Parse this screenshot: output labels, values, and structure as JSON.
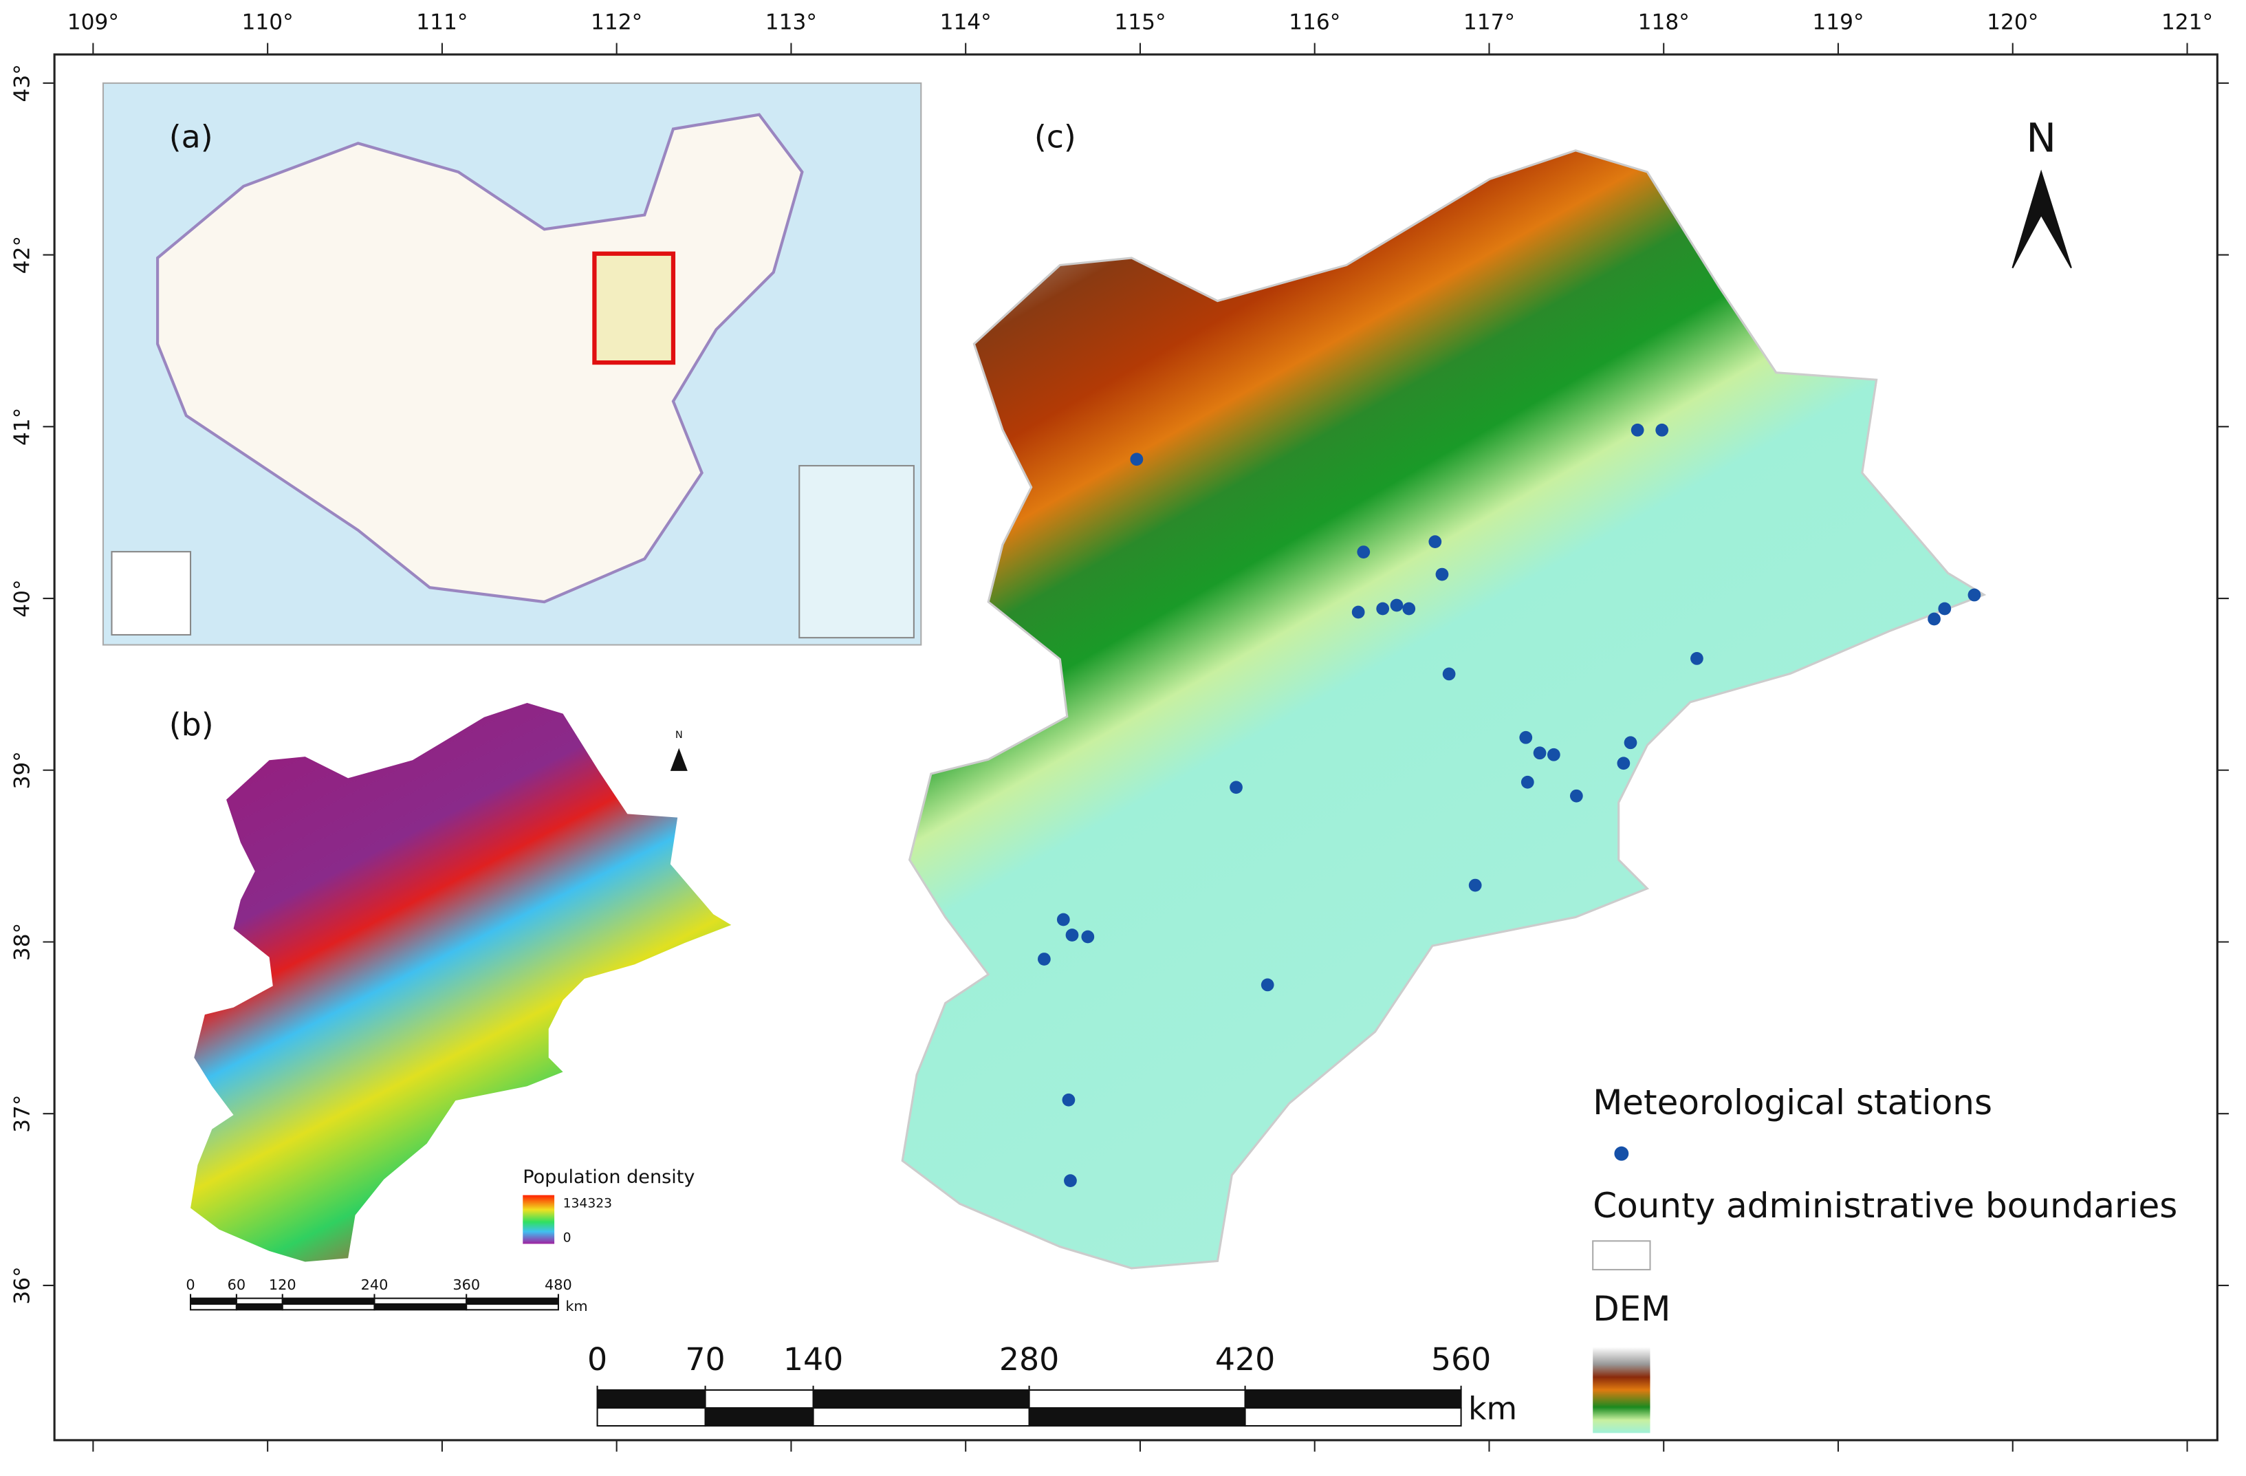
{
  "lon_ticks": [
    {
      "value": 109,
      "label": "109°"
    },
    {
      "value": 110,
      "label": "110°"
    },
    {
      "value": 111,
      "label": "111°"
    },
    {
      "value": 112,
      "label": "112°"
    },
    {
      "value": 113,
      "label": "113°"
    },
    {
      "value": 114,
      "label": "114°"
    },
    {
      "value": 115,
      "label": "115°"
    },
    {
      "value": 116,
      "label": "116°"
    },
    {
      "value": 117,
      "label": "117°"
    },
    {
      "value": 118,
      "label": "118°"
    },
    {
      "value": 119,
      "label": "119°"
    },
    {
      "value": 120,
      "label": "120°"
    },
    {
      "value": 121,
      "label": "121°"
    }
  ],
  "lat_ticks": [
    {
      "value": 36,
      "label": "36°"
    },
    {
      "value": 37,
      "label": "37°"
    },
    {
      "value": 38,
      "label": "38°"
    },
    {
      "value": 39,
      "label": "39°"
    },
    {
      "value": 40,
      "label": "40°"
    },
    {
      "value": 41,
      "label": "41°"
    },
    {
      "value": 42,
      "label": "42°"
    },
    {
      "value": 43,
      "label": "43°"
    }
  ],
  "panels": {
    "a": "(a)",
    "b": "(b)",
    "c": "(c)"
  },
  "north_main": "N",
  "north_b": "N",
  "legend": {
    "stations": "Meteorological stations",
    "boundaries": "County administrative boundaries",
    "dem": "DEM"
  },
  "scale_main": {
    "ticks": [
      0,
      70,
      140,
      280,
      420,
      560
    ],
    "unit": "km"
  },
  "scale_b": {
    "ticks": [
      0,
      60,
      120,
      240,
      360,
      480
    ],
    "unit": "km"
  },
  "population": {
    "title": "Population density",
    "max": 134323,
    "min": 0
  },
  "stations": {
    "lon": [
      114.98,
      117.85,
      117.99,
      116.28,
      116.69,
      116.73,
      116.25,
      116.39,
      116.47,
      116.54,
      118.19,
      116.77,
      119.55,
      119.61,
      119.78,
      117.21,
      117.29,
      117.37,
      117.22,
      117.81,
      117.77,
      117.5,
      115.55,
      116.92,
      114.56,
      114.61,
      114.7,
      114.45,
      115.73,
      114.59,
      114.6
    ],
    "lat": [
      40.81,
      40.98,
      40.98,
      40.27,
      40.33,
      40.14,
      39.92,
      39.94,
      39.96,
      39.94,
      39.65,
      39.56,
      39.88,
      39.94,
      40.02,
      39.19,
      39.1,
      39.09,
      38.93,
      39.16,
      39.04,
      38.85,
      38.9,
      38.33,
      38.13,
      38.04,
      38.03,
      37.9,
      37.75,
      37.08,
      36.61
    ]
  }
}
